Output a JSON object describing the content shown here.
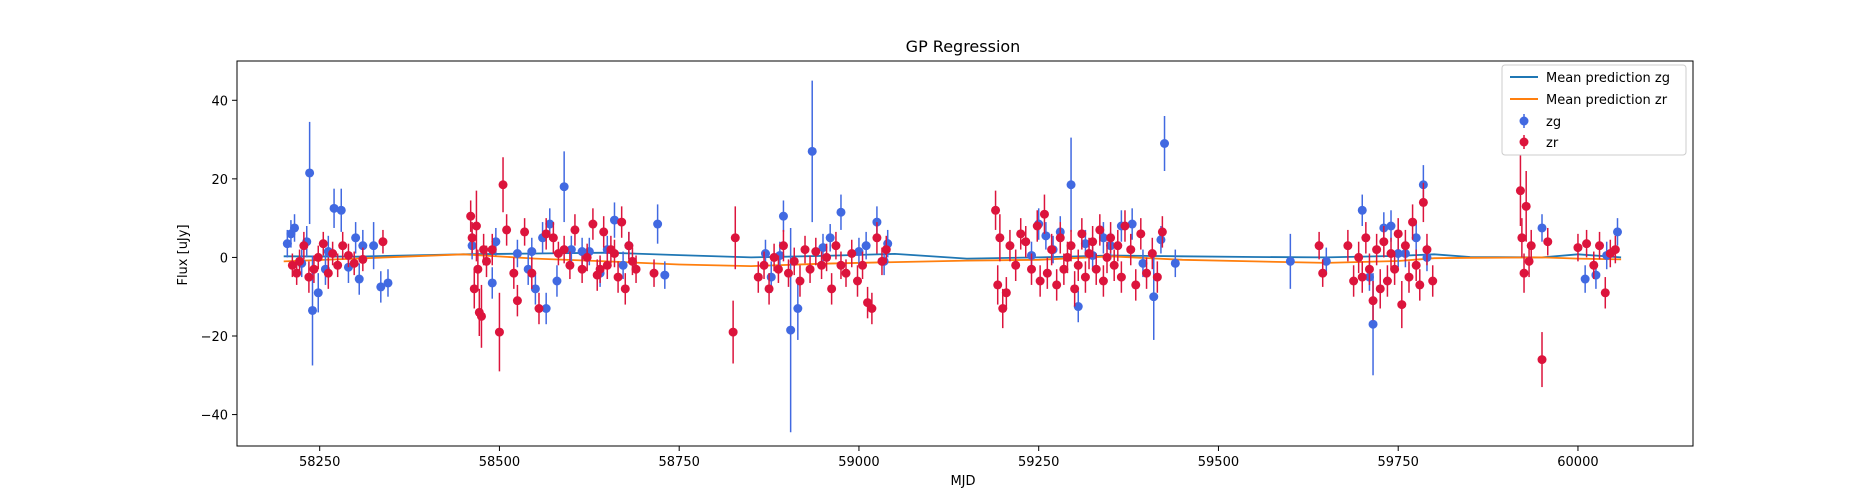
{
  "chart_data": {
    "type": "scatter",
    "title": "GP Regression",
    "xlabel": "MJD",
    "ylabel": "Flux [uJy]",
    "xlim": [
      58135,
      60160
    ],
    "ylim": [
      -48,
      50
    ],
    "xticks": [
      58250,
      58500,
      58750,
      59000,
      59250,
      59500,
      59750,
      60000
    ],
    "xtick_labels": [
      "58250",
      "58500",
      "58750",
      "59000",
      "59250",
      "59500",
      "59750",
      "60000"
    ],
    "yticks": [
      -40,
      -20,
      0,
      20,
      40
    ],
    "ytick_labels": [
      "−40",
      "−20",
      "0",
      "20",
      "40"
    ],
    "grid": false,
    "legend_position": "top-right",
    "legend": [
      {
        "label": "Mean prediction zg",
        "kind": "line",
        "color": "#1f77b4"
      },
      {
        "label": "Mean prediction zr",
        "kind": "line",
        "color": "#ff7f0e"
      },
      {
        "label": "zg",
        "kind": "errorbar",
        "color": "#4169e1"
      },
      {
        "label": "zr",
        "kind": "errorbar",
        "color": "#dc143c"
      }
    ],
    "lines": [
      {
        "name": "Mean prediction zg",
        "color": "#1f77b4",
        "x": [
          58200,
          58300,
          58450,
          58550,
          58650,
          58750,
          58850,
          58950,
          59050,
          59150,
          59250,
          59350,
          59450,
          59550,
          59650,
          59750,
          59800,
          59850,
          59950,
          60000,
          60060
        ],
        "y": [
          0.3,
          0.2,
          0.8,
          1.0,
          1.2,
          0.6,
          0.0,
          0.4,
          0.9,
          -0.3,
          0.0,
          0.5,
          0.3,
          0.1,
          0.0,
          0.4,
          0.8,
          0.1,
          0.0,
          0.8,
          0.0
        ]
      },
      {
        "name": "Mean prediction zr",
        "color": "#ff7f0e",
        "x": [
          58200,
          58300,
          58450,
          58550,
          58650,
          58750,
          58850,
          58950,
          59050,
          59150,
          59250,
          59350,
          59450,
          59550,
          59650,
          59750,
          59800,
          59850,
          59950,
          60000,
          60060
        ],
        "y": [
          -1.0,
          -0.3,
          0.8,
          -0.3,
          -1.0,
          -1.8,
          -2.2,
          -1.6,
          -1.2,
          -0.8,
          -0.6,
          0.3,
          -0.6,
          -1.0,
          -1.4,
          -0.9,
          -0.2,
          -0.1,
          0.0,
          -0.3,
          -0.5
        ]
      }
    ],
    "series": [
      {
        "name": "zg",
        "color": "#4169e1",
        "x": [
          58205,
          58210,
          58215,
          58225,
          58232,
          58236,
          58240,
          58248,
          58258,
          58262,
          58270,
          58280,
          58290,
          58300,
          58305,
          58310,
          58325,
          58335,
          58345,
          58462,
          58490,
          58495,
          58525,
          58540,
          58545,
          58550,
          58560,
          58565,
          58570,
          58580,
          58590,
          58600,
          58615,
          58625,
          58640,
          58650,
          58660,
          58672,
          58680,
          58720,
          58730,
          58870,
          58878,
          58890,
          58895,
          58905,
          58915,
          58935,
          58950,
          58960,
          58975,
          59000,
          59010,
          59025,
          59035,
          59040,
          59240,
          59250,
          59260,
          59270,
          59280,
          59295,
          59305,
          59315,
          59325,
          59340,
          59350,
          59365,
          59380,
          59395,
          59410,
          59420,
          59425,
          59440,
          59600,
          59650,
          59700,
          59710,
          59715,
          59730,
          59740,
          59750,
          59760,
          59775,
          59785,
          59790,
          59950,
          60010,
          60025,
          60040,
          60055
        ],
        "y": [
          3.5,
          6.0,
          7.5,
          -1.5,
          4.0,
          21.5,
          -13.5,
          -9.0,
          -3.0,
          1.5,
          12.5,
          12.0,
          -2.5,
          5.0,
          -5.5,
          3.0,
          3.0,
          -7.5,
          -6.5,
          3.0,
          -6.5,
          4.0,
          1.0,
          -3.0,
          1.5,
          -8.0,
          5.0,
          -13.0,
          8.5,
          -6.0,
          18.0,
          2.0,
          1.5,
          1.5,
          -4.0,
          2.0,
          9.5,
          -2.0,
          3.0,
          8.5,
          -4.5,
          1.0,
          -5.0,
          0.5,
          10.5,
          -18.5,
          -13.0,
          27.0,
          2.5,
          5.0,
          11.5,
          1.5,
          3.0,
          9.0,
          -1.0,
          3.5,
          0.5,
          8.5,
          5.5,
          2.0,
          6.5,
          18.5,
          -12.5,
          3.5,
          0.5,
          5.0,
          3.0,
          8.0,
          8.5,
          -1.5,
          -10.0,
          4.5,
          29.0,
          -1.5,
          -1.0,
          -1.0,
          12.0,
          -5.0,
          -17.0,
          7.5,
          8.0,
          1.0,
          1.0,
          5.0,
          18.5,
          0.0,
          7.5,
          -5.5,
          -4.5,
          0.5,
          6.5
        ],
        "err": [
          3.5,
          3.5,
          3.5,
          3.5,
          4,
          13,
          14,
          5,
          4,
          4,
          5,
          5.5,
          4,
          4,
          4,
          4,
          6,
          4,
          3.5,
          3.5,
          4,
          3.5,
          3.5,
          4,
          3.5,
          4,
          4,
          4,
          4,
          4,
          9,
          3.5,
          3.5,
          3.5,
          3.5,
          3.5,
          4.5,
          3.5,
          3.5,
          5,
          3.5,
          3.5,
          4,
          3.5,
          4,
          26,
          8,
          18,
          3.5,
          3.5,
          4.5,
          3.5,
          3.5,
          4,
          3.5,
          3.5,
          3.5,
          4,
          3.5,
          3.5,
          4,
          12,
          4,
          3.5,
          3.5,
          4,
          3.5,
          4,
          4,
          3.5,
          11,
          3.5,
          7,
          3.5,
          7,
          3.5,
          4,
          3.5,
          13,
          4,
          4,
          3.5,
          3.5,
          4,
          5,
          3.5,
          3.5,
          3.5,
          3.5,
          3.5,
          3.5
        ]
      },
      {
        "name": "zr",
        "color": "#dc143c",
        "x": [
          58212,
          58218,
          58222,
          58228,
          58235,
          58242,
          58248,
          58255,
          58262,
          58268,
          58275,
          58282,
          58290,
          58298,
          58310,
          58338,
          58460,
          58462,
          58465,
          58468,
          58470,
          58472,
          58475,
          58478,
          58482,
          58490,
          58500,
          58505,
          58510,
          58520,
          58525,
          58535,
          58545,
          58555,
          58565,
          58575,
          58582,
          58590,
          58598,
          58605,
          58615,
          58622,
          58630,
          58636,
          58640,
          58645,
          58650,
          58655,
          58660,
          58665,
          58670,
          58675,
          58680,
          58685,
          58690,
          58715,
          58825,
          58828,
          58860,
          58868,
          58875,
          58882,
          58888,
          58895,
          58902,
          58910,
          58918,
          58925,
          58932,
          58940,
          58948,
          58955,
          58962,
          58968,
          58975,
          58982,
          58990,
          58998,
          59005,
          59012,
          59018,
          59025,
          59032,
          59038,
          59190,
          59193,
          59196,
          59200,
          59205,
          59210,
          59218,
          59225,
          59232,
          59240,
          59248,
          59252,
          59258,
          59262,
          59268,
          59275,
          59280,
          59285,
          59290,
          59295,
          59300,
          59305,
          59310,
          59315,
          59320,
          59325,
          59330,
          59335,
          59340,
          59345,
          59350,
          59355,
          59360,
          59365,
          59370,
          59378,
          59385,
          59392,
          59400,
          59408,
          59415,
          59422,
          59640,
          59645,
          59680,
          59688,
          59695,
          59700,
          59705,
          59710,
          59715,
          59720,
          59725,
          59730,
          59735,
          59740,
          59745,
          59750,
          59755,
          59760,
          59765,
          59770,
          59775,
          59780,
          59785,
          59790,
          59798,
          59920,
          59922,
          59925,
          59928,
          59932,
          59935,
          59950,
          59958,
          60000,
          60012,
          60022,
          60030,
          60038,
          60045,
          60052
        ],
        "y": [
          -2.0,
          -4.0,
          -1.0,
          3.0,
          -5.0,
          -3.0,
          0.0,
          3.5,
          -4.0,
          1.0,
          -2.0,
          3.0,
          0.5,
          -1.5,
          -0.5,
          4.0,
          10.5,
          5.0,
          -8.0,
          8.0,
          -3.0,
          -14.0,
          -15.0,
          2.0,
          -1.0,
          2.0,
          -19.0,
          18.5,
          7.0,
          -4.0,
          -11.0,
          6.5,
          -4.0,
          -13.0,
          6.0,
          5.0,
          1.0,
          2.0,
          -2.0,
          7.0,
          -3.0,
          0.0,
          8.5,
          -4.5,
          -3.0,
          6.5,
          -2.0,
          2.0,
          1.0,
          -5.0,
          9.0,
          -8.0,
          3.0,
          -1.0,
          -3.0,
          -4.0,
          -19.0,
          5.0,
          -5.0,
          -2.0,
          -8.0,
          0.0,
          -3.0,
          3.0,
          -4.0,
          -1.0,
          -6.0,
          2.0,
          -3.0,
          1.5,
          -2.0,
          0.0,
          -8.0,
          3.0,
          -2.0,
          -4.0,
          1.0,
          -6.0,
          -2.0,
          -11.5,
          -13.0,
          5.0,
          -1.0,
          2.0,
          12.0,
          -7.0,
          5.0,
          -13.0,
          -9.0,
          3.0,
          -2.0,
          6.0,
          4.0,
          -3.0,
          8.0,
          -6.0,
          11.0,
          -4.0,
          2.0,
          -7.0,
          5.0,
          -3.0,
          0.0,
          3.0,
          -8.0,
          -2.0,
          6.0,
          -5.0,
          1.0,
          4.0,
          -3.0,
          7.0,
          -6.0,
          0.0,
          5.0,
          -2.0,
          3.0,
          -5.0,
          8.0,
          2.0,
          -7.0,
          6.0,
          -4.0,
          1.0,
          -5.0,
          6.5,
          3.0,
          -4.0,
          3.0,
          -6.0,
          0.0,
          -5.0,
          5.0,
          -3.0,
          -11.0,
          2.0,
          -8.0,
          4.0,
          -6.0,
          1.0,
          -3.0,
          6.0,
          -12.0,
          3.0,
          -5.0,
          9.0,
          -2.0,
          -7.0,
          14.0,
          2.0,
          -6.0,
          17.0,
          5.0,
          -4.0,
          13.0,
          -1.0,
          3.0,
          -26.0,
          4.0,
          2.5,
          3.5,
          -2.0,
          3.0,
          -9.0,
          1.0,
          2.0
        ],
        "err": [
          3,
          3,
          3,
          3.5,
          4,
          3.5,
          3,
          3,
          4,
          3,
          3,
          3.5,
          3,
          3,
          3,
          3,
          4,
          4,
          5,
          9,
          5,
          6,
          8,
          4,
          4,
          4,
          10,
          7,
          4,
          4,
          4,
          3.5,
          4,
          4,
          4,
          4,
          3,
          3.5,
          3.5,
          4,
          3.5,
          3.5,
          4,
          4,
          3.5,
          4,
          3.5,
          3.5,
          3.5,
          4,
          4,
          4,
          3.5,
          3.5,
          3.5,
          3.5,
          8,
          8,
          4,
          3.5,
          4,
          3.5,
          3.5,
          4,
          3.5,
          3.5,
          4,
          3.5,
          3.5,
          3.5,
          3.5,
          3.5,
          4,
          3.5,
          3.5,
          3.5,
          3.5,
          4,
          3.5,
          4,
          4,
          4,
          3.5,
          3.5,
          5,
          5,
          6,
          5,
          4,
          4,
          4,
          4,
          4,
          4,
          4,
          4,
          5,
          4,
          4,
          4,
          4,
          4,
          4,
          4,
          4.5,
          4,
          4,
          4,
          4,
          4,
          4,
          4,
          4,
          4,
          4,
          4,
          4,
          4,
          4,
          4,
          4,
          4,
          4,
          4,
          4,
          4,
          3.5,
          3.5,
          4,
          4,
          4,
          4,
          4,
          4,
          5,
          4,
          5,
          4,
          4,
          4,
          4,
          4,
          6,
          4,
          4,
          4.5,
          4,
          4,
          5,
          4,
          4,
          9,
          5,
          5,
          9,
          4,
          4,
          7,
          3.5,
          3.5,
          3.5,
          3.5,
          3.5,
          4,
          3.5,
          3.5
        ]
      }
    ]
  }
}
